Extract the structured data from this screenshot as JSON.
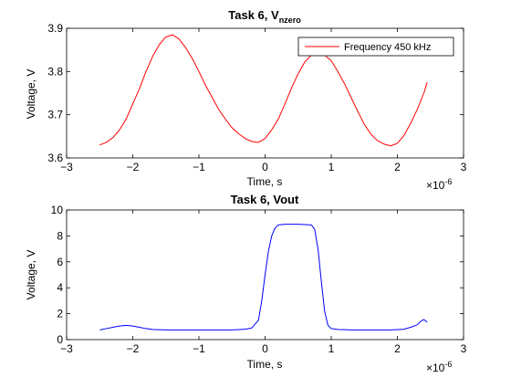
{
  "chart_data": [
    {
      "type": "line",
      "title": "Task 6, V",
      "title_subscript": "nzero",
      "xlabel": "Time, s",
      "ylabel": "Voltage, V",
      "x_exponent_base": "×10",
      "x_exponent_power": "-6",
      "xlim": [
        -3e-06,
        3e-06
      ],
      "ylim": [
        3.6,
        3.9
      ],
      "xticks": [
        -3e-06,
        -2e-06,
        -1e-06,
        0,
        1e-06,
        2e-06,
        3e-06
      ],
      "xtick_labels": [
        "−3",
        "−2",
        "−1",
        "0",
        "1",
        "2",
        "3"
      ],
      "yticks": [
        3.6,
        3.7,
        3.8,
        3.9
      ],
      "ytick_labels": [
        "3.6",
        "3.7",
        "3.8",
        "3.9"
      ],
      "grid": false,
      "legend_placement": "top-right",
      "series": [
        {
          "name": "Frequency 450 kHz",
          "color": "#ff0000",
          "x": [
            -2.5e-06,
            -2.4e-06,
            -2.3e-06,
            -2.2e-06,
            -2.1e-06,
            -2e-06,
            -1.9e-06,
            -1.8e-06,
            -1.7e-06,
            -1.6e-06,
            -1.5e-06,
            -1.4e-06,
            -1.3e-06,
            -1.2e-06,
            -1.1e-06,
            -1e-06,
            -9e-07,
            -8e-07,
            -7e-07,
            -6e-07,
            -5e-07,
            -4e-07,
            -3e-07,
            -2e-07,
            -1e-07,
            0,
            1e-07,
            2e-07,
            3e-07,
            4e-07,
            5e-07,
            6e-07,
            7e-07,
            8e-07,
            9e-07,
            1e-06,
            1.1e-06,
            1.2e-06,
            1.3e-06,
            1.4e-06,
            1.5e-06,
            1.6e-06,
            1.7e-06,
            1.8e-06,
            1.9e-06,
            2e-06,
            2.1e-06,
            2.2e-06,
            2.3e-06,
            2.4e-06,
            2.45e-06
          ],
          "y": [
            3.63,
            3.636,
            3.647,
            3.665,
            3.69,
            3.725,
            3.76,
            3.8,
            3.835,
            3.862,
            3.88,
            3.885,
            3.875,
            3.855,
            3.83,
            3.8,
            3.768,
            3.74,
            3.712,
            3.69,
            3.67,
            3.656,
            3.645,
            3.638,
            3.636,
            3.645,
            3.665,
            3.69,
            3.725,
            3.762,
            3.795,
            3.822,
            3.838,
            3.843,
            3.838,
            3.825,
            3.8,
            3.772,
            3.74,
            3.708,
            3.678,
            3.655,
            3.64,
            3.632,
            3.628,
            3.634,
            3.652,
            3.68,
            3.712,
            3.75,
            3.775
          ]
        }
      ]
    },
    {
      "type": "line",
      "title": "Task 6, Vout",
      "xlabel": "Time, s",
      "ylabel": "Voltage, V",
      "x_exponent_base": "×10",
      "x_exponent_power": "-6",
      "xlim": [
        -3e-06,
        3e-06
      ],
      "ylim": [
        0,
        10
      ],
      "xticks": [
        -3e-06,
        -2e-06,
        -1e-06,
        0,
        1e-06,
        2e-06,
        3e-06
      ],
      "xtick_labels": [
        "−3",
        "−2",
        "−1",
        "0",
        "1",
        "2",
        "3"
      ],
      "yticks": [
        0,
        2,
        4,
        6,
        8,
        10
      ],
      "ytick_labels": [
        "0",
        "2",
        "4",
        "6",
        "8",
        "10"
      ],
      "grid": false,
      "series": [
        {
          "color": "#0000ff",
          "x": [
            -2.5e-06,
            -2.4e-06,
            -2.3e-06,
            -2.2e-06,
            -2.1e-06,
            -2e-06,
            -1.9e-06,
            -1.8e-06,
            -1.7e-06,
            -1.5e-06,
            -1e-06,
            -5e-07,
            -3e-07,
            -2e-07,
            -1e-07,
            -5e-08,
            0,
            5e-08,
            1e-07,
            1.5e-07,
            2e-07,
            3e-07,
            5e-07,
            7e-07,
            7.5e-07,
            8e-07,
            8.5e-07,
            9e-07,
            9.5e-07,
            1e-06,
            1.1e-06,
            1.3e-06,
            1.6e-06,
            1.9e-06,
            2.1e-06,
            2.2e-06,
            2.3e-06,
            2.35e-06,
            2.4e-06,
            2.45e-06
          ],
          "y": [
            0.75,
            0.85,
            0.95,
            1.05,
            1.1,
            1.05,
            0.95,
            0.85,
            0.78,
            0.75,
            0.75,
            0.75,
            0.8,
            0.9,
            1.5,
            3.0,
            5.0,
            6.8,
            8.0,
            8.6,
            8.85,
            8.9,
            8.9,
            8.85,
            8.5,
            7.0,
            4.5,
            2.2,
            1.1,
            0.85,
            0.78,
            0.75,
            0.75,
            0.75,
            0.8,
            0.95,
            1.15,
            1.4,
            1.55,
            1.35
          ]
        }
      ]
    }
  ]
}
